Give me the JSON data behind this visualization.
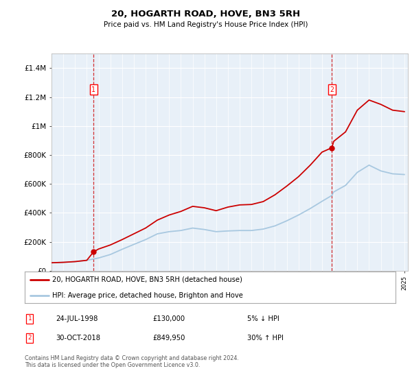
{
  "title": "20, HOGARTH ROAD, HOVE, BN3 5RH",
  "subtitle": "Price paid vs. HM Land Registry's House Price Index (HPI)",
  "background_color": "#ffffff",
  "plot_bg_color": "#e8f0f8",
  "ylim": [
    0,
    1500000
  ],
  "yticks": [
    0,
    200000,
    400000,
    600000,
    800000,
    1000000,
    1200000,
    1400000
  ],
  "ytick_labels": [
    "£0",
    "£200K",
    "£400K",
    "£600K",
    "£800K",
    "£1M",
    "£1.2M",
    "£1.4M"
  ],
  "sale1_date": 1998.57,
  "sale1_price": 130000,
  "sale1_label": "1",
  "sale1_text": "24-JUL-1998",
  "sale1_amount": "£130,000",
  "sale1_hpi": "5% ↓ HPI",
  "sale2_date": 2018.83,
  "sale2_price": 849950,
  "sale2_label": "2",
  "sale2_text": "30-OCT-2018",
  "sale2_amount": "£849,950",
  "sale2_hpi": "30% ↑ HPI",
  "line_color_property": "#cc0000",
  "line_color_hpi": "#a8c8e0",
  "legend_label_property": "20, HOGARTH ROAD, HOVE, BN3 5RH (detached house)",
  "legend_label_hpi": "HPI: Average price, detached house, Brighton and Hove",
  "footer": "Contains HM Land Registry data © Crown copyright and database right 2024.\nThis data is licensed under the Open Government Licence v3.0.",
  "hpi_years": [
    1995,
    1996,
    1997,
    1998,
    1999,
    2000,
    2001,
    2002,
    2003,
    2004,
    2005,
    2006,
    2007,
    2008,
    2009,
    2010,
    2011,
    2012,
    2013,
    2014,
    2015,
    2016,
    2017,
    2018,
    2018.83,
    2019,
    2020,
    2021,
    2022,
    2023,
    2024,
    2025
  ],
  "hpi_values": [
    55000,
    58000,
    63000,
    72000,
    88000,
    112000,
    148000,
    182000,
    215000,
    255000,
    270000,
    278000,
    295000,
    285000,
    270000,
    275000,
    278000,
    278000,
    288000,
    310000,
    345000,
    385000,
    430000,
    480000,
    520000,
    545000,
    590000,
    680000,
    730000,
    690000,
    670000,
    665000
  ],
  "property_years": [
    1995,
    1996,
    1997,
    1998,
    1998.57,
    1999,
    2000,
    2001,
    2002,
    2003,
    2004,
    2005,
    2006,
    2007,
    2008,
    2009,
    2010,
    2011,
    2012,
    2013,
    2014,
    2015,
    2016,
    2017,
    2018,
    2018.83,
    2019,
    2020,
    2021,
    2022,
    2023,
    2024,
    2025
  ],
  "property_values": [
    55000,
    58000,
    63000,
    72000,
    130000,
    150000,
    178000,
    215000,
    255000,
    295000,
    350000,
    385000,
    410000,
    445000,
    435000,
    415000,
    440000,
    455000,
    458000,
    478000,
    525000,
    585000,
    650000,
    730000,
    820000,
    849950,
    895000,
    960000,
    1110000,
    1180000,
    1150000,
    1110000,
    1100000
  ]
}
